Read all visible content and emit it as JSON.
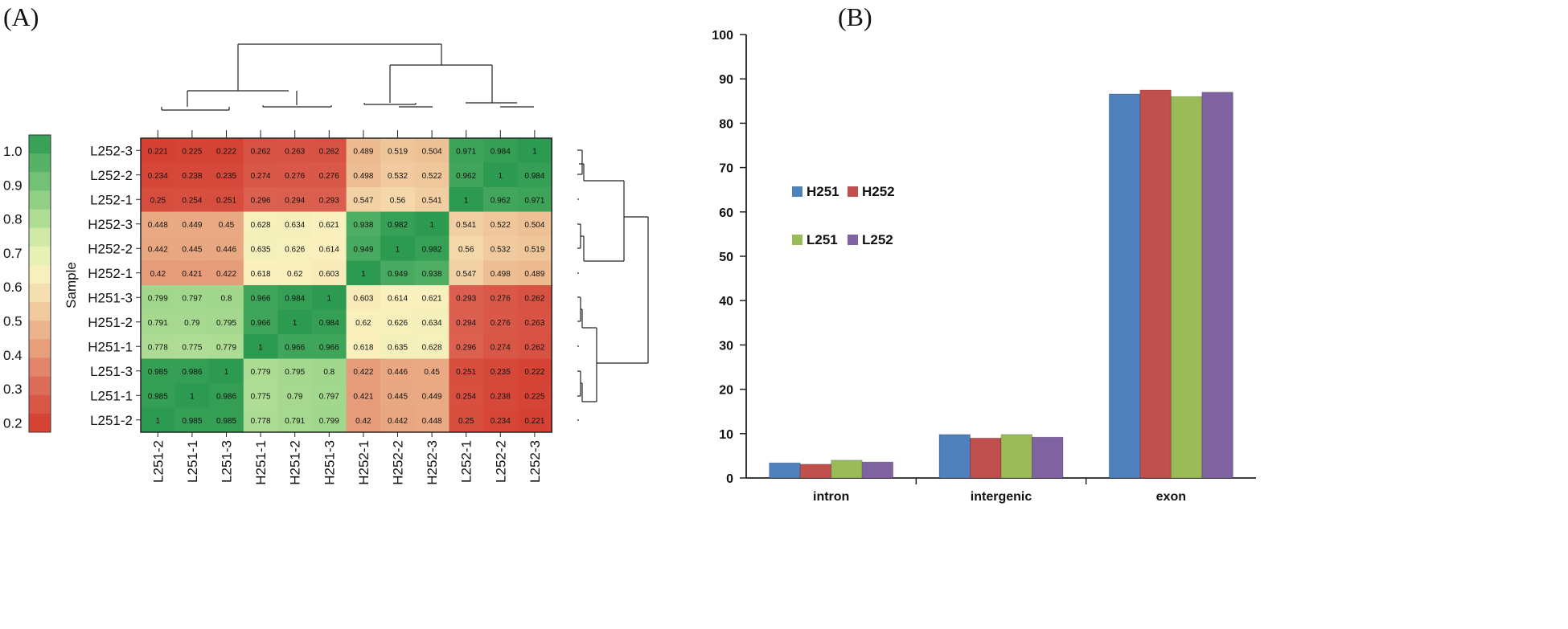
{
  "panels": {
    "a": "(A)",
    "b": "(B)"
  },
  "chart_data": [
    {
      "type": "heatmap",
      "title": "",
      "color_scale_label": "Sample",
      "color_scale_ticks": [
        "1.0",
        "0.9",
        "0.8",
        "0.7",
        "0.6",
        "0.5",
        "0.4",
        "0.3",
        "0.2"
      ],
      "color_range": [
        0.2,
        1.0
      ],
      "rows": [
        "L252-3",
        "L252-2",
        "L252-1",
        "H252-3",
        "H252-2",
        "H252-1",
        "H251-3",
        "H251-2",
        "H251-1",
        "L251-3",
        "L251-1",
        "L251-2"
      ],
      "columns": [
        "L251-2",
        "L251-1",
        "L251-3",
        "H251-1",
        "H251-2",
        "H251-3",
        "H252-1",
        "H252-2",
        "H252-3",
        "L252-1",
        "L252-2",
        "L252-3"
      ],
      "values": [
        [
          "0.221",
          "0.225",
          "0.222",
          "0.262",
          "0.263",
          "0.262",
          "0.489",
          "0.519",
          "0.504",
          "0.971",
          "0.984",
          "1"
        ],
        [
          "0.234",
          "0.238",
          "0.235",
          "0.274",
          "0.276",
          "0.276",
          "0.498",
          "0.532",
          "0.522",
          "0.962",
          "1",
          "0.984"
        ],
        [
          "0.25",
          "0.254",
          "0.251",
          "0.296",
          "0.294",
          "0.293",
          "0.547",
          "0.56",
          "0.541",
          "1",
          "0.962",
          "0.971"
        ],
        [
          "0.448",
          "0.449",
          "0.45",
          "0.628",
          "0.634",
          "0.621",
          "0.938",
          "0.982",
          "1",
          "0.541",
          "0.522",
          "0.504"
        ],
        [
          "0.442",
          "0.445",
          "0.446",
          "0.635",
          "0.626",
          "0.614",
          "0.949",
          "1",
          "0.982",
          "0.56",
          "0.532",
          "0.519"
        ],
        [
          "0.42",
          "0.421",
          "0.422",
          "0.618",
          "0.62",
          "0.603",
          "1",
          "0.949",
          "0.938",
          "0.547",
          "0.498",
          "0.489"
        ],
        [
          "0.799",
          "0.797",
          "0.8",
          "0.966",
          "0.984",
          "1",
          "0.603",
          "0.614",
          "0.621",
          "0.293",
          "0.276",
          "0.262"
        ],
        [
          "0.791",
          "0.79",
          "0.795",
          "0.966",
          "1",
          "0.984",
          "0.62",
          "0.626",
          "0.634",
          "0.294",
          "0.276",
          "0.263"
        ],
        [
          "0.778",
          "0.775",
          "0.779",
          "1",
          "0.966",
          "0.966",
          "0.618",
          "0.635",
          "0.628",
          "0.296",
          "0.274",
          "0.262"
        ],
        [
          "0.985",
          "0.986",
          "1",
          "0.779",
          "0.795",
          "0.8",
          "0.422",
          "0.446",
          "0.45",
          "0.251",
          "0.235",
          "0.222"
        ],
        [
          "0.985",
          "1",
          "0.986",
          "0.775",
          "0.79",
          "0.797",
          "0.421",
          "0.445",
          "0.449",
          "0.254",
          "0.238",
          "0.225"
        ],
        [
          "1",
          "0.985",
          "0.985",
          "0.778",
          "0.791",
          "0.799",
          "0.42",
          "0.442",
          "0.448",
          "0.25",
          "0.234",
          "0.221"
        ]
      ],
      "dendrograms": [
        "top (columns)",
        "right (rows)"
      ]
    },
    {
      "type": "bar",
      "title": "",
      "xlabel": "",
      "ylabel": "",
      "categories": [
        "intron",
        "intergenic",
        "exon"
      ],
      "series": [
        {
          "name": "H251",
          "color": "#4f81bd",
          "values": [
            3.4,
            9.8,
            86.6
          ]
        },
        {
          "name": "H252",
          "color": "#c0504d",
          "values": [
            3.1,
            9.0,
            87.5
          ]
        },
        {
          "name": "L251",
          "color": "#9bbb59",
          "values": [
            4.0,
            9.8,
            86.0
          ]
        },
        {
          "name": "L252",
          "color": "#8064a2",
          "values": [
            3.6,
            9.2,
            87.0
          ]
        }
      ],
      "ylim": [
        0,
        100
      ],
      "yticks": [
        "0",
        "10",
        "20",
        "30",
        "40",
        "50",
        "60",
        "70",
        "80",
        "90",
        "100"
      ],
      "legend": "left-middle, two rows"
    }
  ]
}
